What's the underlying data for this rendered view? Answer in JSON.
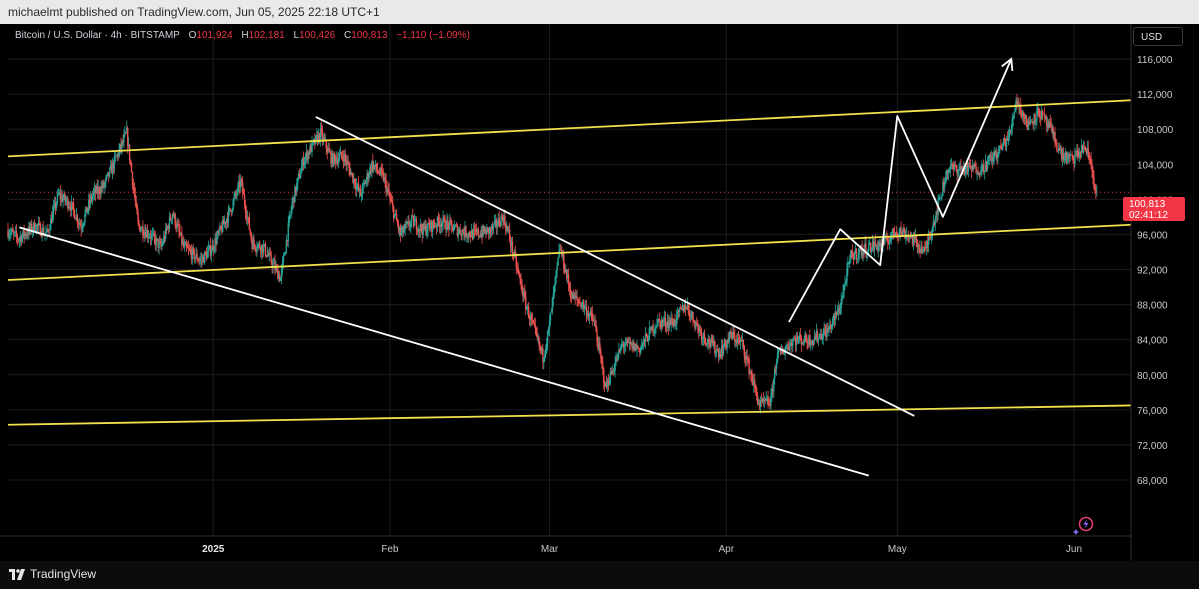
{
  "header": {
    "publish_text": "michaelmt published on TradingView.com, Jun 05, 2025 22:18 UTC+1"
  },
  "symbol": {
    "name": "Bitcoin / U.S. Dollar · 4h · BITSTAMP",
    "o_label": "O",
    "o_value": "101,924",
    "h_label": "H",
    "h_value": "102,181",
    "l_label": "L",
    "l_value": "100,426",
    "c_label": "C",
    "c_value": "100,813",
    "change": "−1,110 (−1.09%)"
  },
  "currency": "USD",
  "last_price": {
    "value": "100,813",
    "countdown": "02:41:12"
  },
  "footer": {
    "brand": "TradingView"
  },
  "colors": {
    "up": "#26a69a",
    "down": "#ef5350",
    "channel": "#f4e04d",
    "trend": "#ffffff",
    "badge": "#f23645"
  },
  "chart_data": {
    "type": "candlestick",
    "title": "",
    "ylabel": "",
    "xlabel": "",
    "ylim": [
      66000,
      118000
    ],
    "y_ticks": [
      "116,000",
      "112,000",
      "108,000",
      "104,000",
      "100,000",
      "96,000",
      "92,000",
      "88,000",
      "84,000",
      "80,000",
      "76,000",
      "72,000",
      "68,000"
    ],
    "y_tick_values": [
      116000,
      112000,
      108000,
      104000,
      100000,
      96000,
      92000,
      88000,
      84000,
      80000,
      76000,
      72000,
      68000
    ],
    "x_ticks": [
      {
        "label": "2025",
        "date": "2025-01-01",
        "bold": true
      },
      {
        "label": "Feb",
        "date": "2025-02-01",
        "bold": false
      },
      {
        "label": "Mar",
        "date": "2025-03-01",
        "bold": false
      },
      {
        "label": "Apr",
        "date": "2025-04-01",
        "bold": false
      },
      {
        "label": "May",
        "date": "2025-05-01",
        "bold": false
      },
      {
        "label": "Jun",
        "date": "2025-06-01",
        "bold": false
      }
    ],
    "x_range": [
      "2024-11-26",
      "2025-06-11"
    ],
    "grid": true,
    "price_path": [
      [
        "2024-11-26",
        96500
      ],
      [
        "2024-11-28",
        95500
      ],
      [
        "2024-12-01",
        97000
      ],
      [
        "2024-12-03",
        96000
      ],
      [
        "2024-12-05",
        100500
      ],
      [
        "2024-12-07",
        99500
      ],
      [
        "2024-12-09",
        97000
      ],
      [
        "2024-12-11",
        100500
      ],
      [
        "2024-12-13",
        101500
      ],
      [
        "2024-12-15",
        104500
      ],
      [
        "2024-12-17",
        107500
      ],
      [
        "2024-12-19",
        97000
      ],
      [
        "2024-12-21",
        96000
      ],
      [
        "2024-12-23",
        94500
      ],
      [
        "2024-12-25",
        98500
      ],
      [
        "2024-12-27",
        94500
      ],
      [
        "2024-12-30",
        93000
      ],
      [
        "2025-01-01",
        94500
      ],
      [
        "2025-01-04",
        98500
      ],
      [
        "2025-01-06",
        102000
      ],
      [
        "2025-01-08",
        95000
      ],
      [
        "2025-01-10",
        94500
      ],
      [
        "2025-01-13",
        91000
      ],
      [
        "2025-01-15",
        99500
      ],
      [
        "2025-01-17",
        104500
      ],
      [
        "2025-01-20",
        107500
      ],
      [
        "2025-01-22",
        104500
      ],
      [
        "2025-01-24",
        105000
      ],
      [
        "2025-01-27",
        100500
      ],
      [
        "2025-01-29",
        104000
      ],
      [
        "2025-01-31",
        102500
      ],
      [
        "2025-02-03",
        96000
      ],
      [
        "2025-02-05",
        97500
      ],
      [
        "2025-02-07",
        96500
      ],
      [
        "2025-02-10",
        97500
      ],
      [
        "2025-02-13",
        96500
      ],
      [
        "2025-02-16",
        96000
      ],
      [
        "2025-02-19",
        96500
      ],
      [
        "2025-02-21",
        98000
      ],
      [
        "2025-02-22",
        96000
      ],
      [
        "2025-02-25",
        88000
      ],
      [
        "2025-02-28",
        82000
      ],
      [
        "2025-03-01",
        85000
      ],
      [
        "2025-03-03",
        94500
      ],
      [
        "2025-03-05",
        89000
      ],
      [
        "2025-03-07",
        88000
      ],
      [
        "2025-03-09",
        86000
      ],
      [
        "2025-03-11",
        78500
      ],
      [
        "2025-03-14",
        83500
      ],
      [
        "2025-03-17",
        83000
      ],
      [
        "2025-03-20",
        86000
      ],
      [
        "2025-03-23",
        86000
      ],
      [
        "2025-03-25",
        88000
      ],
      [
        "2025-03-28",
        84500
      ],
      [
        "2025-03-31",
        82500
      ],
      [
        "2025-04-02",
        84500
      ],
      [
        "2025-04-04",
        83500
      ],
      [
        "2025-04-07",
        76500
      ],
      [
        "2025-04-09",
        77000
      ],
      [
        "2025-04-10",
        82000
      ],
      [
        "2025-04-13",
        84000
      ],
      [
        "2025-04-16",
        84000
      ],
      [
        "2025-04-19",
        85000
      ],
      [
        "2025-04-21",
        87500
      ],
      [
        "2025-04-23",
        93500
      ],
      [
        "2025-04-26",
        94500
      ],
      [
        "2025-04-29",
        95000
      ],
      [
        "2025-05-01",
        96500
      ],
      [
        "2025-05-03",
        96000
      ],
      [
        "2025-05-06",
        94000
      ],
      [
        "2025-05-08",
        98500
      ],
      [
        "2025-05-10",
        103500
      ],
      [
        "2025-05-13",
        103500
      ],
      [
        "2025-05-16",
        103500
      ],
      [
        "2025-05-19",
        105500
      ],
      [
        "2025-05-21",
        107500
      ],
      [
        "2025-05-22",
        111500
      ],
      [
        "2025-05-24",
        108500
      ],
      [
        "2025-05-26",
        110000
      ],
      [
        "2025-05-28",
        108000
      ],
      [
        "2025-05-30",
        105000
      ],
      [
        "2025-06-01",
        104500
      ],
      [
        "2025-06-03",
        106000
      ],
      [
        "2025-06-04",
        104500
      ],
      [
        "2025-06-05",
        100813
      ]
    ],
    "drawings": [
      {
        "name": "channel-upper",
        "color": "yellow",
        "points": [
          [
            "2024-11-26",
            104900
          ],
          [
            "2025-06-11",
            111300
          ]
        ]
      },
      {
        "name": "channel-middle",
        "color": "yellow",
        "points": [
          [
            "2024-11-26",
            90800
          ],
          [
            "2025-06-11",
            97100
          ]
        ]
      },
      {
        "name": "support-lower",
        "color": "yellow",
        "points": [
          [
            "2024-11-26",
            74300
          ],
          [
            "2025-06-11",
            76500
          ]
        ]
      },
      {
        "name": "wedge-upper",
        "color": "white",
        "points": [
          [
            "2025-01-19",
            109400
          ],
          [
            "2025-05-04",
            75300
          ]
        ]
      },
      {
        "name": "wedge-lower",
        "color": "white",
        "points": [
          [
            "2024-11-28",
            96800
          ],
          [
            "2025-04-26",
            68500
          ]
        ]
      },
      {
        "name": "projection-path",
        "color": "white",
        "arrow": true,
        "points": [
          [
            "2025-04-12",
            86000
          ],
          [
            "2025-04-21",
            96600
          ],
          [
            "2025-04-28",
            92500
          ],
          [
            "2025-05-01",
            109500
          ],
          [
            "2025-05-09",
            98000
          ],
          [
            "2025-05-21",
            116000
          ]
        ]
      }
    ]
  }
}
